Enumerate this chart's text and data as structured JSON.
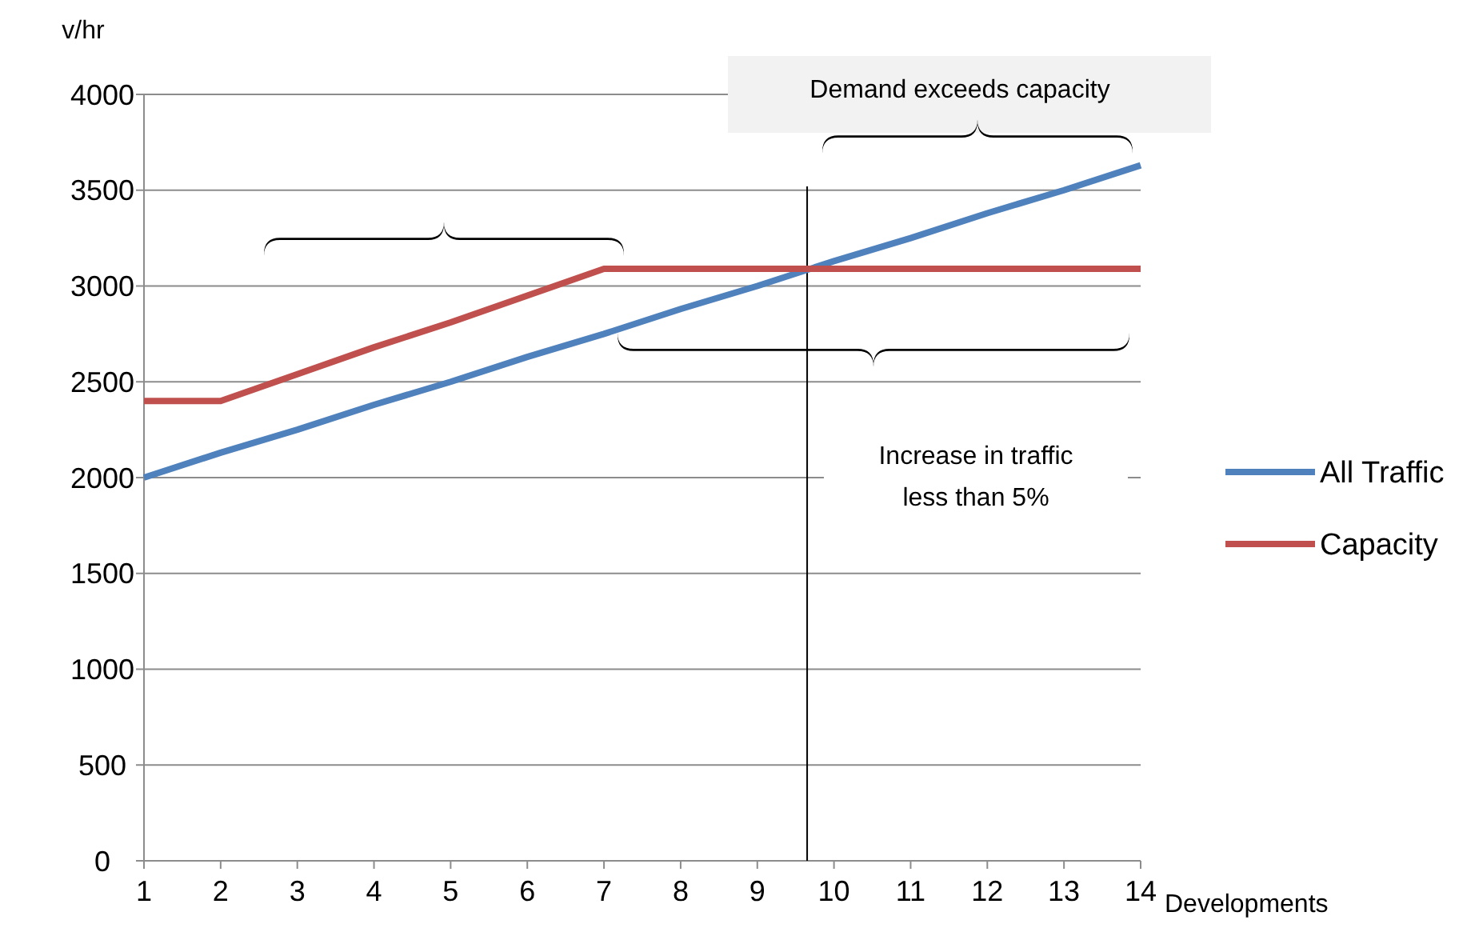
{
  "chart_data": {
    "type": "line",
    "ylabel": "v/hr",
    "xlabel": "Developments",
    "x": [
      1,
      2,
      3,
      4,
      5,
      6,
      7,
      8,
      9,
      10,
      11,
      12,
      13,
      14
    ],
    "series": [
      {
        "name": "All Traffic",
        "color": "#4f81bd",
        "values": [
          2000,
          2130,
          2250,
          2380,
          2500,
          2630,
          2750,
          2880,
          3000,
          3130,
          3250,
          3380,
          3500,
          3630
        ]
      },
      {
        "name": "Capacity",
        "color": "#c0504d",
        "values": [
          2400,
          2400,
          2540,
          2680,
          2810,
          2950,
          3090,
          3090,
          3090,
          3090,
          3090,
          3090,
          3090,
          3090
        ]
      }
    ],
    "xlim": [
      1,
      14
    ],
    "xticks": [
      1,
      2,
      3,
      4,
      5,
      6,
      7,
      8,
      9,
      10,
      11,
      12,
      13,
      14
    ],
    "ylim": [
      0,
      4000
    ],
    "yticks": [
      0,
      500,
      1000,
      1500,
      2000,
      2500,
      3000,
      3500,
      4000
    ],
    "grid": "y",
    "legend": "right",
    "marker": "none",
    "line_style": "solid",
    "ref_lines": [
      {
        "axis": "x",
        "value": 9.65,
        "color": "#000000"
      }
    ],
    "annotations": [
      "Demand exceeds capacity",
      "Increase in traffic\nless than 5%"
    ]
  }
}
